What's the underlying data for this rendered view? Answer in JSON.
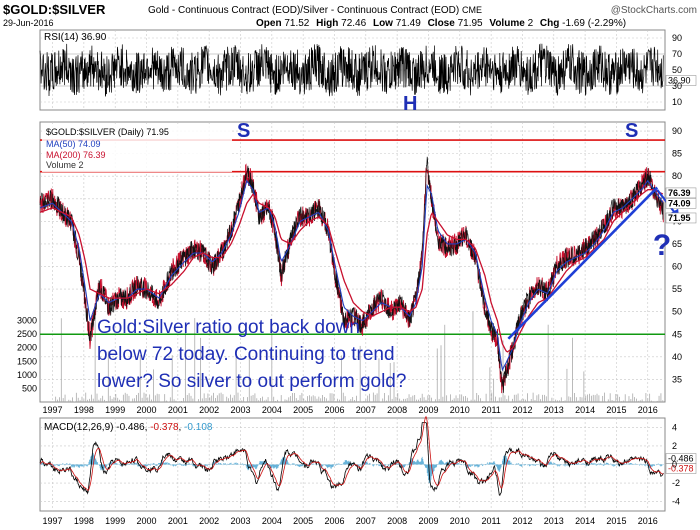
{
  "header": {
    "symbol": "$GOLD:$SILVER",
    "description": "Gold - Continuous Contract (EOD)/Silver - Continuous Contract (EOD)",
    "exchange": "CME",
    "date": "29-Jun-2016",
    "open_label": "Open",
    "open": "71.52",
    "high_label": "High",
    "high": "72.46",
    "low_label": "Low",
    "low": "71.49",
    "close_label": "Close",
    "close": "71.95",
    "volume_label": "Volume",
    "volume": "2",
    "chg_label": "Chg",
    "chg": "-1.69 (-2.29%)",
    "watermark": "@StockCharts.com"
  },
  "colors": {
    "price_red": "#c8102e",
    "price_black": "#111111",
    "ma50": "#1f3fbf",
    "ma200": "#c8102e",
    "resistance": "#dd1111",
    "support": "#119911",
    "trendline": "#1f3fd6",
    "annotation": "#1f2fb5",
    "macd_signal": "#cc1111",
    "macd_hist": "#3399cc",
    "grid": "#c8c8c8"
  },
  "rsi": {
    "label": "RSI(14)",
    "value": "36.90",
    "ticks": [
      "10",
      "30",
      "50",
      "70",
      "90"
    ],
    "levels": [
      10,
      30,
      50,
      70,
      90
    ],
    "last_tag": "36.90"
  },
  "price_panel": {
    "legend_symbol": "$GOLD:$SILVER (Daily)",
    "legend_value": "71.95",
    "ma50_label": "MA(50)",
    "ma50_value": "74.09",
    "ma200_label": "MA(200)",
    "ma200_value": "76.39",
    "volume_label": "Volume",
    "volume_value": "2",
    "right_ticks": [
      "90",
      "85",
      "80",
      "75",
      "70",
      "65",
      "60",
      "55",
      "50",
      "45",
      "40",
      "35"
    ],
    "right_tick_values": [
      90,
      85,
      80,
      75,
      70,
      65,
      60,
      55,
      50,
      45,
      40,
      35
    ],
    "volume_ticks": [
      "3000",
      "2500",
      "2000",
      "1500",
      "1000",
      "500"
    ],
    "volume_tick_values": [
      3000,
      2500,
      2000,
      1500,
      1000,
      500
    ],
    "tags": {
      "ma200": "76.39",
      "ma50": "74.09",
      "close": "71.95"
    }
  },
  "annotations": {
    "left_shoulder": "S",
    "head": "H",
    "right_shoulder": "S",
    "question": "?",
    "note_line1": "Gold:Silver ratio got back down",
    "note_line2": "below 72 today. Continuing to trend",
    "note_line3": "lower? So silver to out perform gold?"
  },
  "macd": {
    "label": "MACD(12,26,9)",
    "value1": "-0.486",
    "value2": "-0.378",
    "value3": "-0.108",
    "ticks": [
      "4",
      "2",
      "0",
      "-2",
      "-4"
    ],
    "tick_values": [
      4,
      2,
      0,
      -2,
      -4
    ],
    "tags": [
      "-0.486",
      "-0.378"
    ]
  },
  "x_axis": {
    "labels": [
      "1997",
      "1998",
      "1999",
      "2000",
      "2001",
      "2002",
      "2003",
      "2004",
      "2005",
      "2006",
      "2007",
      "2008",
      "2009",
      "2010",
      "2011",
      "2012",
      "2013",
      "2014",
      "2015",
      "2016"
    ]
  },
  "chart_data": {
    "type": "line",
    "title": "$GOLD:$SILVER",
    "x_range": [
      1996.6,
      2016.55
    ],
    "y_range": [
      30,
      92
    ],
    "x": [
      1996.6,
      1997.0,
      1997.3,
      1997.6,
      1997.85,
      1998.05,
      1998.2,
      1998.5,
      1998.8,
      1999.1,
      1999.4,
      1999.7,
      2000.0,
      2000.4,
      2000.8,
      2001.2,
      2001.5,
      2001.8,
      2002.1,
      2002.4,
      2002.7,
      2002.95,
      2003.2,
      2003.4,
      2003.6,
      2003.9,
      2004.1,
      2004.3,
      2004.6,
      2004.9,
      2005.2,
      2005.5,
      2005.8,
      2006.0,
      2006.3,
      2006.6,
      2006.9,
      2007.2,
      2007.5,
      2007.8,
      2008.1,
      2008.4,
      2008.6,
      2008.8,
      2008.95,
      2009.1,
      2009.3,
      2009.6,
      2009.9,
      2010.2,
      2010.5,
      2010.8,
      2011.0,
      2011.2,
      2011.35,
      2011.5,
      2011.7,
      2011.9,
      2012.2,
      2012.5,
      2012.8,
      2013.1,
      2013.4,
      2013.7,
      2014.0,
      2014.3,
      2014.6,
      2014.9,
      2015.2,
      2015.5,
      2015.8,
      2016.0,
      2016.2,
      2016.5
    ],
    "series": [
      {
        "values": [
          74,
          75,
          72,
          70,
          62,
          52,
          44,
          56,
          51,
          53,
          53,
          56,
          55,
          52,
          59,
          62,
          64,
          63,
          60,
          63,
          68,
          74,
          81,
          78,
          71,
          73,
          68,
          58,
          66,
          71,
          71,
          73,
          68,
          59,
          48,
          49,
          47,
          51,
          53,
          50,
          52,
          48,
          53,
          63,
          83,
          75,
          66,
          64,
          65,
          67,
          62,
          51,
          46,
          44,
          33,
          37,
          42,
          48,
          53,
          56,
          54,
          60,
          62,
          62,
          64,
          66,
          69,
          73,
          73,
          75,
          78,
          80,
          77,
          72
        ]
      },
      {
        "name": "MA(50)",
        "values": [
          73,
          74,
          72,
          70,
          64,
          55,
          48,
          54,
          52,
          53,
          53,
          55,
          55,
          53,
          58,
          61,
          63,
          63,
          61,
          63,
          67,
          72,
          79,
          77,
          72,
          73,
          69,
          61,
          65,
          70,
          71,
          72,
          68,
          61,
          51,
          49,
          48,
          50,
          52,
          51,
          51,
          49,
          52,
          60,
          78,
          76,
          68,
          65,
          65,
          66,
          63,
          53,
          48,
          45,
          37,
          39,
          42,
          47,
          52,
          55,
          54,
          59,
          61,
          62,
          63,
          65,
          68,
          72,
          73,
          75,
          77,
          79,
          77,
          74
        ]
      },
      {
        "name": "MA(200)",
        "values": [
          72,
          73,
          72,
          71,
          67,
          61,
          55,
          54,
          53,
          53,
          53,
          54,
          55,
          54,
          56,
          59,
          62,
          63,
          62,
          62,
          65,
          69,
          74,
          76,
          74,
          73,
          71,
          66,
          65,
          68,
          70,
          71,
          69,
          64,
          57,
          52,
          50,
          49,
          50,
          51,
          51,
          50,
          51,
          55,
          67,
          72,
          70,
          67,
          66,
          66,
          64,
          58,
          52,
          48,
          43,
          41,
          42,
          45,
          49,
          52,
          53,
          56,
          59,
          61,
          62,
          64,
          66,
          70,
          72,
          74,
          76,
          77,
          77,
          76
        ]
      }
    ],
    "reference_lines": [
      {
        "y": 88,
        "color": "#dd1111"
      },
      {
        "y": 81,
        "color": "#dd1111"
      },
      {
        "y": 45,
        "color": "#119911"
      }
    ],
    "trendline": {
      "from": [
        2011.55,
        44.0
      ],
      "to": [
        2016.3,
        77.5
      ]
    },
    "last_close": 71.95,
    "grid": true,
    "legend_position": "top-left"
  }
}
